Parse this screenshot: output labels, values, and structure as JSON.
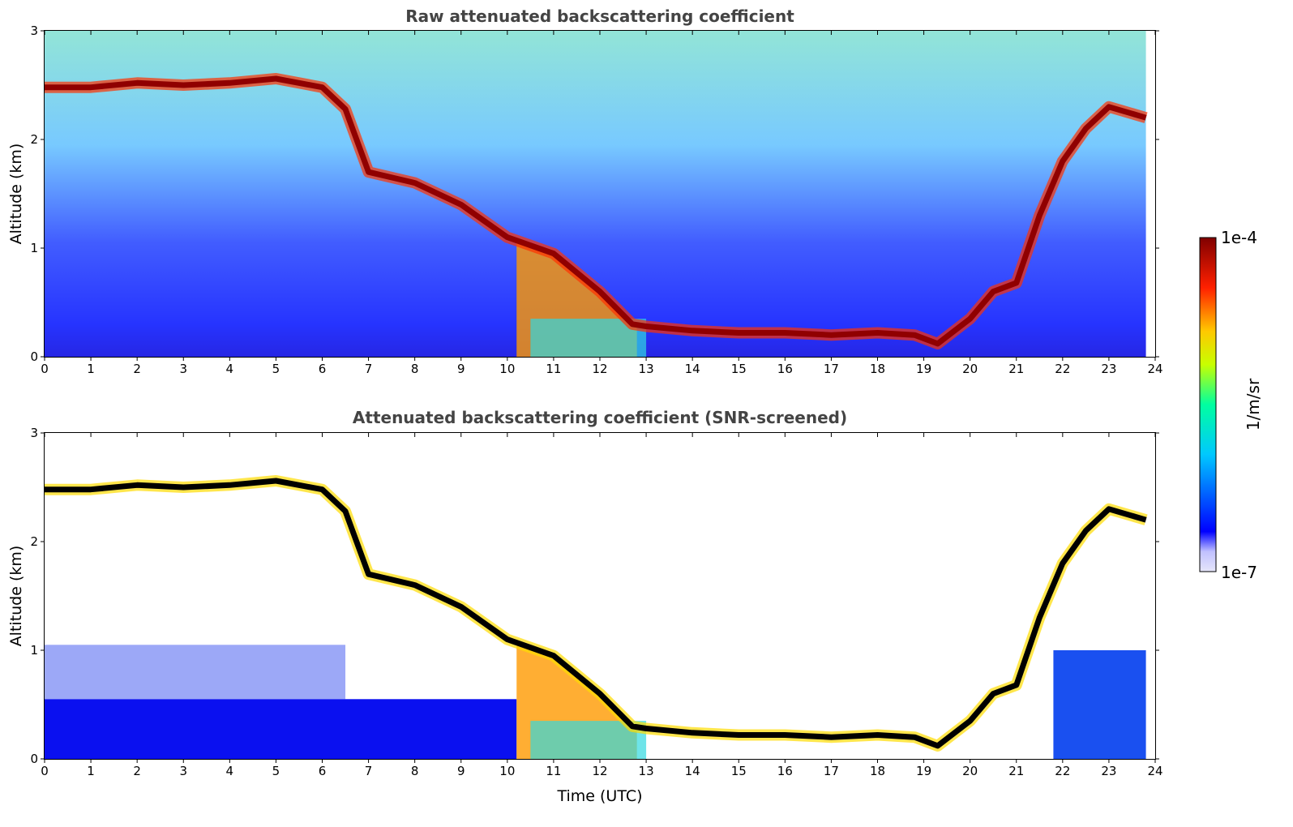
{
  "chart_data": [
    {
      "type": "heatmap",
      "title": "Raw attenuated backscattering coefficient",
      "xlabel": "",
      "ylabel": "Altitude (km)",
      "xlim": [
        0,
        24
      ],
      "ylim": [
        0,
        3
      ],
      "x_ticks": [
        "0",
        "1",
        "2",
        "3",
        "4",
        "5",
        "6",
        "7",
        "8",
        "9",
        "10",
        "11",
        "12",
        "13",
        "14",
        "15",
        "16",
        "17",
        "18",
        "19",
        "20",
        "21",
        "22",
        "23",
        "24"
      ],
      "y_ticks": [
        "0",
        "1",
        "2",
        "3"
      ],
      "screened": false,
      "layer_trace": [
        [
          0,
          2.48
        ],
        [
          1,
          2.48
        ],
        [
          2,
          2.52
        ],
        [
          3,
          2.5
        ],
        [
          4,
          2.52
        ],
        [
          5,
          2.56
        ],
        [
          6,
          2.48
        ],
        [
          6.5,
          2.28
        ],
        [
          7,
          1.7
        ],
        [
          8,
          1.6
        ],
        [
          9,
          1.4
        ],
        [
          10,
          1.1
        ],
        [
          11,
          0.95
        ],
        [
          12,
          0.6
        ],
        [
          12.7,
          0.3
        ],
        [
          13,
          0.28
        ],
        [
          14,
          0.24
        ],
        [
          15,
          0.22
        ],
        [
          16,
          0.22
        ],
        [
          17,
          0.2
        ],
        [
          18,
          0.22
        ],
        [
          18.8,
          0.2
        ],
        [
          19.3,
          0.12
        ],
        [
          20,
          0.35
        ],
        [
          20.5,
          0.6
        ],
        [
          21,
          0.68
        ],
        [
          21.5,
          1.3
        ],
        [
          22,
          1.8
        ],
        [
          22.5,
          2.1
        ],
        [
          23,
          2.3
        ],
        [
          23.8,
          2.2
        ]
      ]
    },
    {
      "type": "heatmap",
      "title": "Attenuated backscattering coefficient (SNR-screened)",
      "xlabel": "Time (UTC)",
      "ylabel": "Altitude (km)",
      "xlim": [
        0,
        24
      ],
      "ylim": [
        0,
        3
      ],
      "x_ticks": [
        "0",
        "1",
        "2",
        "3",
        "4",
        "5",
        "6",
        "7",
        "8",
        "9",
        "10",
        "11",
        "12",
        "13",
        "14",
        "15",
        "16",
        "17",
        "18",
        "19",
        "20",
        "21",
        "22",
        "23",
        "24"
      ],
      "y_ticks": [
        "0",
        "1",
        "2",
        "3"
      ],
      "screened": true,
      "layer_trace": [
        [
          0,
          2.48
        ],
        [
          1,
          2.48
        ],
        [
          2,
          2.52
        ],
        [
          3,
          2.5
        ],
        [
          4,
          2.52
        ],
        [
          5,
          2.56
        ],
        [
          6,
          2.48
        ],
        [
          6.5,
          2.28
        ],
        [
          7,
          1.7
        ],
        [
          8,
          1.6
        ],
        [
          9,
          1.4
        ],
        [
          10,
          1.1
        ],
        [
          11,
          0.95
        ],
        [
          12,
          0.6
        ],
        [
          12.7,
          0.3
        ],
        [
          13,
          0.28
        ],
        [
          14,
          0.24
        ],
        [
          15,
          0.22
        ],
        [
          16,
          0.22
        ],
        [
          17,
          0.2
        ],
        [
          18,
          0.22
        ],
        [
          18.8,
          0.2
        ],
        [
          19.3,
          0.12
        ],
        [
          20,
          0.35
        ],
        [
          20.5,
          0.6
        ],
        [
          21,
          0.68
        ],
        [
          21.5,
          1.3
        ],
        [
          22,
          1.8
        ],
        [
          22.5,
          2.1
        ],
        [
          23,
          2.3
        ],
        [
          23.8,
          2.2
        ]
      ]
    }
  ],
  "colorbar": {
    "label": "1/m/sr",
    "max_label": "1e-4",
    "min_label": "1e-7",
    "colormap": "jet",
    "colors": [
      "#e6e6fa",
      "#0000ff",
      "#00c8ff",
      "#00ffa0",
      "#c8ff00",
      "#ffc800",
      "#ff2000",
      "#800000"
    ]
  }
}
